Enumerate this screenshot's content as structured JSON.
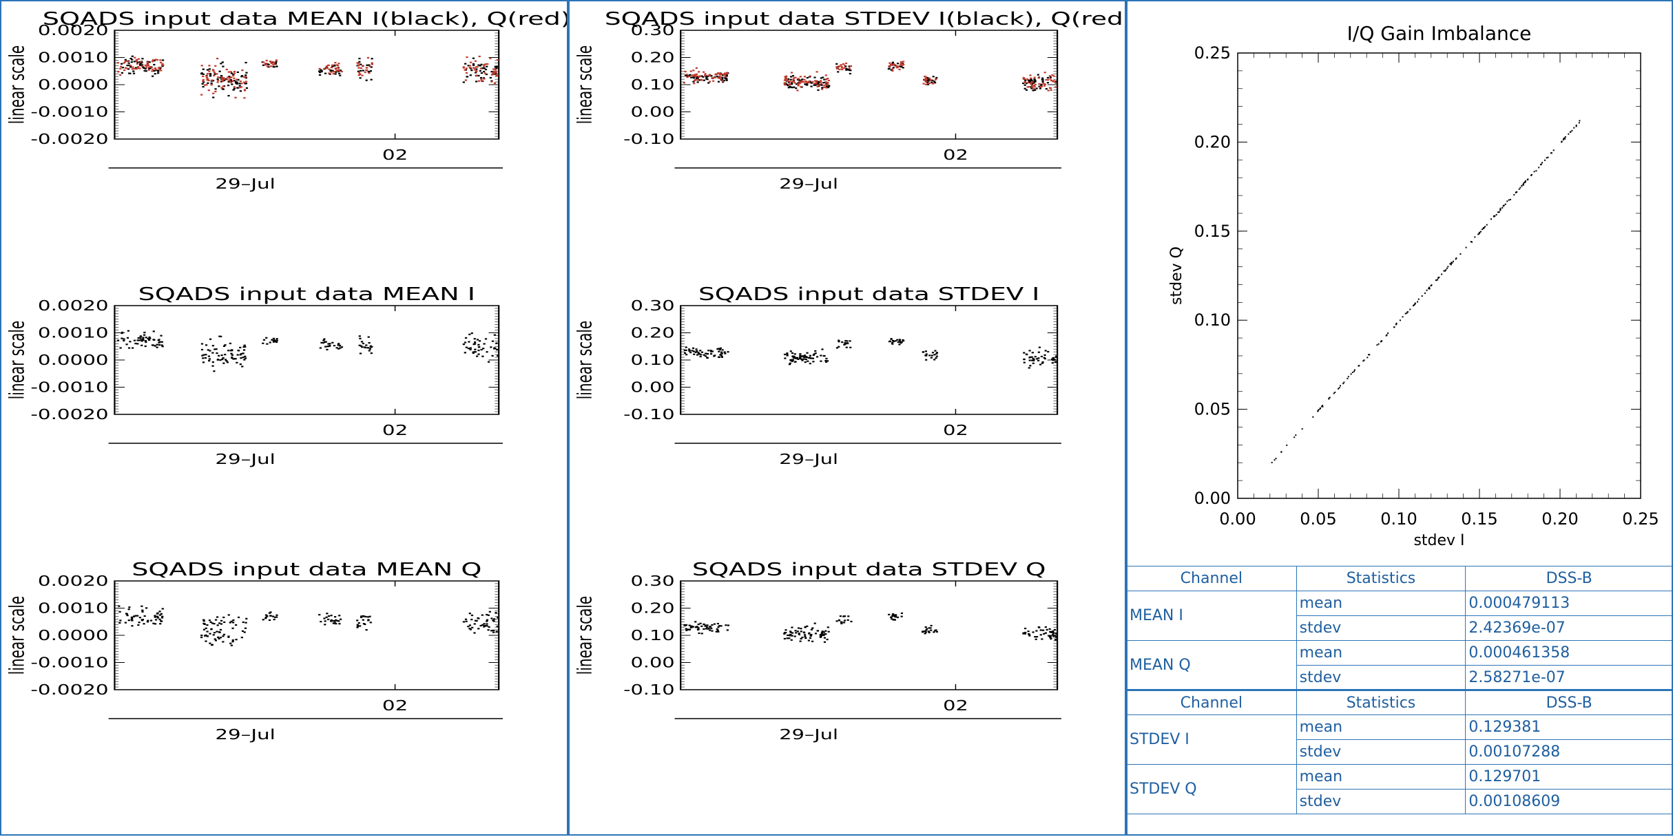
{
  "colors": {
    "frame": "#2b74b8",
    "series_I": "#000000",
    "series_Q": "#c0392b",
    "table_text": "#1f5fa0"
  },
  "chart_data": [
    {
      "id": "mean_iq",
      "type": "scatter",
      "title": "SQADS input data MEAN I(black), Q(red)",
      "ylabel": "linear scale",
      "ylim": [
        -0.002,
        0.002
      ],
      "yticks": [
        "0.0020",
        "0.0010",
        "0.0000",
        "-0.0010",
        "-0.0020"
      ],
      "xtick_label": "02",
      "date_label": "29–Jul",
      "series": [
        {
          "color": "#000000",
          "values": []
        },
        {
          "color": "#c0392b",
          "values": []
        }
      ]
    },
    {
      "id": "mean_i",
      "type": "scatter",
      "title": "SQADS input data MEAN I",
      "ylabel": "linear scale",
      "ylim": [
        -0.002,
        0.002
      ],
      "yticks": [
        "0.0020",
        "0.0010",
        "0.0000",
        "-0.0010",
        "-0.0020"
      ],
      "xtick_label": "02",
      "date_label": "29–Jul",
      "series": [
        {
          "color": "#000000",
          "values": []
        }
      ]
    },
    {
      "id": "mean_q",
      "type": "scatter",
      "title": "SQADS input data MEAN Q",
      "ylabel": "linear scale",
      "ylim": [
        -0.002,
        0.002
      ],
      "yticks": [
        "0.0020",
        "0.0010",
        "0.0000",
        "-0.0010",
        "-0.0020"
      ],
      "xtick_label": "02",
      "date_label": "29–Jul",
      "series": [
        {
          "color": "#000000",
          "values": []
        }
      ]
    },
    {
      "id": "stdev_iq",
      "type": "scatter",
      "title": "SQADS input data STDEV I(black), Q(red)",
      "ylabel": "linear scale",
      "ylim": [
        -0.1,
        0.3
      ],
      "yticks": [
        "0.30",
        "0.20",
        "0.10",
        "0.00",
        "-0.10"
      ],
      "xtick_label": "02",
      "date_label": "29–Jul",
      "series": [
        {
          "color": "#000000",
          "values": []
        },
        {
          "color": "#c0392b",
          "values": []
        }
      ]
    },
    {
      "id": "stdev_i",
      "type": "scatter",
      "title": "SQADS input data STDEV I",
      "ylabel": "linear scale",
      "ylim": [
        -0.1,
        0.3
      ],
      "yticks": [
        "0.30",
        "0.20",
        "0.10",
        "0.00",
        "-0.10"
      ],
      "xtick_label": "02",
      "date_label": "29–Jul",
      "series": [
        {
          "color": "#000000",
          "values": []
        }
      ]
    },
    {
      "id": "stdev_q",
      "type": "scatter",
      "title": "SQADS input data STDEV Q",
      "ylabel": "linear scale",
      "ylim": [
        -0.1,
        0.3
      ],
      "yticks": [
        "0.30",
        "0.20",
        "0.10",
        "0.00",
        "-0.10"
      ],
      "xtick_label": "02",
      "date_label": "29–Jul",
      "series": [
        {
          "color": "#000000",
          "values": []
        }
      ]
    },
    {
      "id": "gain_imbalance",
      "type": "scatter",
      "title": "I/Q Gain Imbalance",
      "xlabel": "stdev I",
      "ylabel": "stdev Q",
      "xlim": [
        0,
        0.25
      ],
      "ylim": [
        0,
        0.25
      ],
      "xticks": [
        "0.00",
        "0.05",
        "0.10",
        "0.15",
        "0.20",
        "0.25"
      ],
      "yticks": [
        "0.25",
        "0.20",
        "0.15",
        "0.10",
        "0.05",
        "0.00"
      ],
      "x_range": [
        0.02,
        0.215
      ],
      "series": [
        {
          "color": "#000000",
          "points": []
        }
      ]
    }
  ],
  "stats_table": {
    "headers": [
      "Channel",
      "Statistics",
      "DSS-B"
    ],
    "groups": [
      {
        "channel": "MEAN I",
        "rows": [
          {
            "stat": "mean",
            "value": "0.000479113"
          },
          {
            "stat": "stdev",
            "value": "2.42369e-07"
          }
        ]
      },
      {
        "channel": "MEAN Q",
        "rows": [
          {
            "stat": "mean",
            "value": "0.000461358"
          },
          {
            "stat": "stdev",
            "value": "2.58271e-07"
          }
        ]
      },
      {
        "channel": "STDEV I",
        "header": true,
        "rows": [
          {
            "stat": "mean",
            "value": "0.129381"
          },
          {
            "stat": "stdev",
            "value": "0.00107288"
          }
        ]
      },
      {
        "channel": "STDEV Q",
        "rows": [
          {
            "stat": "mean",
            "value": "0.129701"
          },
          {
            "stat": "stdev",
            "value": "0.00108609"
          }
        ]
      }
    ]
  }
}
